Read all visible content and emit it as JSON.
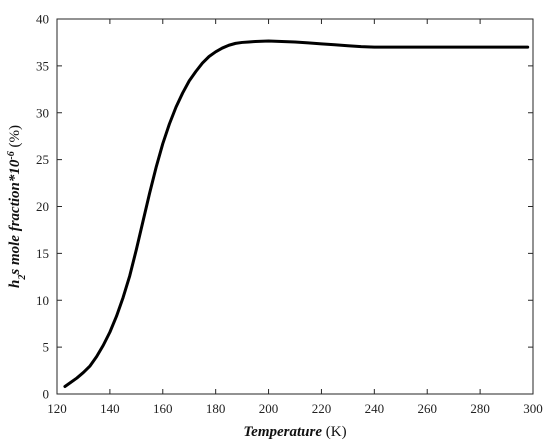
{
  "chart_data": {
    "type": "line",
    "title": "",
    "xlabel": "Temperature (K)",
    "ylabel": "h2s mole fraction*10^-6 (%)",
    "xlim": [
      120,
      300
    ],
    "ylim": [
      0,
      40
    ],
    "x_ticks": [
      120,
      140,
      160,
      180,
      200,
      220,
      240,
      260,
      280,
      300
    ],
    "y_ticks": [
      0,
      5,
      10,
      15,
      20,
      25,
      30,
      35,
      40
    ],
    "grid": false,
    "series": [
      {
        "color": "#000000",
        "x": [
          123,
          125,
          127.5,
          130,
          132.5,
          135,
          137.5,
          140,
          142.5,
          145,
          147.5,
          150,
          152.5,
          155,
          157.5,
          160,
          162.5,
          165,
          167.5,
          170,
          172.5,
          175,
          177.5,
          180,
          182.5,
          185,
          187.5,
          190,
          192.5,
          195,
          200,
          205,
          210,
          215,
          220,
          225,
          230,
          235,
          240,
          250,
          260,
          270,
          280,
          290,
          298
        ],
        "y": [
          0.8,
          1.2,
          1.7,
          2.3,
          3.0,
          4.0,
          5.2,
          6.6,
          8.3,
          10.3,
          12.6,
          15.4,
          18.4,
          21.4,
          24.2,
          26.7,
          28.8,
          30.6,
          32.1,
          33.4,
          34.4,
          35.3,
          36.0,
          36.5,
          36.9,
          37.2,
          37.4,
          37.5,
          37.55,
          37.6,
          37.65,
          37.6,
          37.55,
          37.45,
          37.35,
          37.25,
          37.15,
          37.05,
          37.0,
          37.0,
          37.0,
          37.0,
          37.0,
          37.0,
          37.0
        ]
      }
    ]
  },
  "labels": {
    "y_axis": {
      "h": "h",
      "sub": "2",
      "rest": "s mole fraction*10",
      "exp": "-6",
      "unit": " (%)"
    },
    "x_axis": {
      "word": "Temperature",
      "unit": " (K)"
    }
  }
}
